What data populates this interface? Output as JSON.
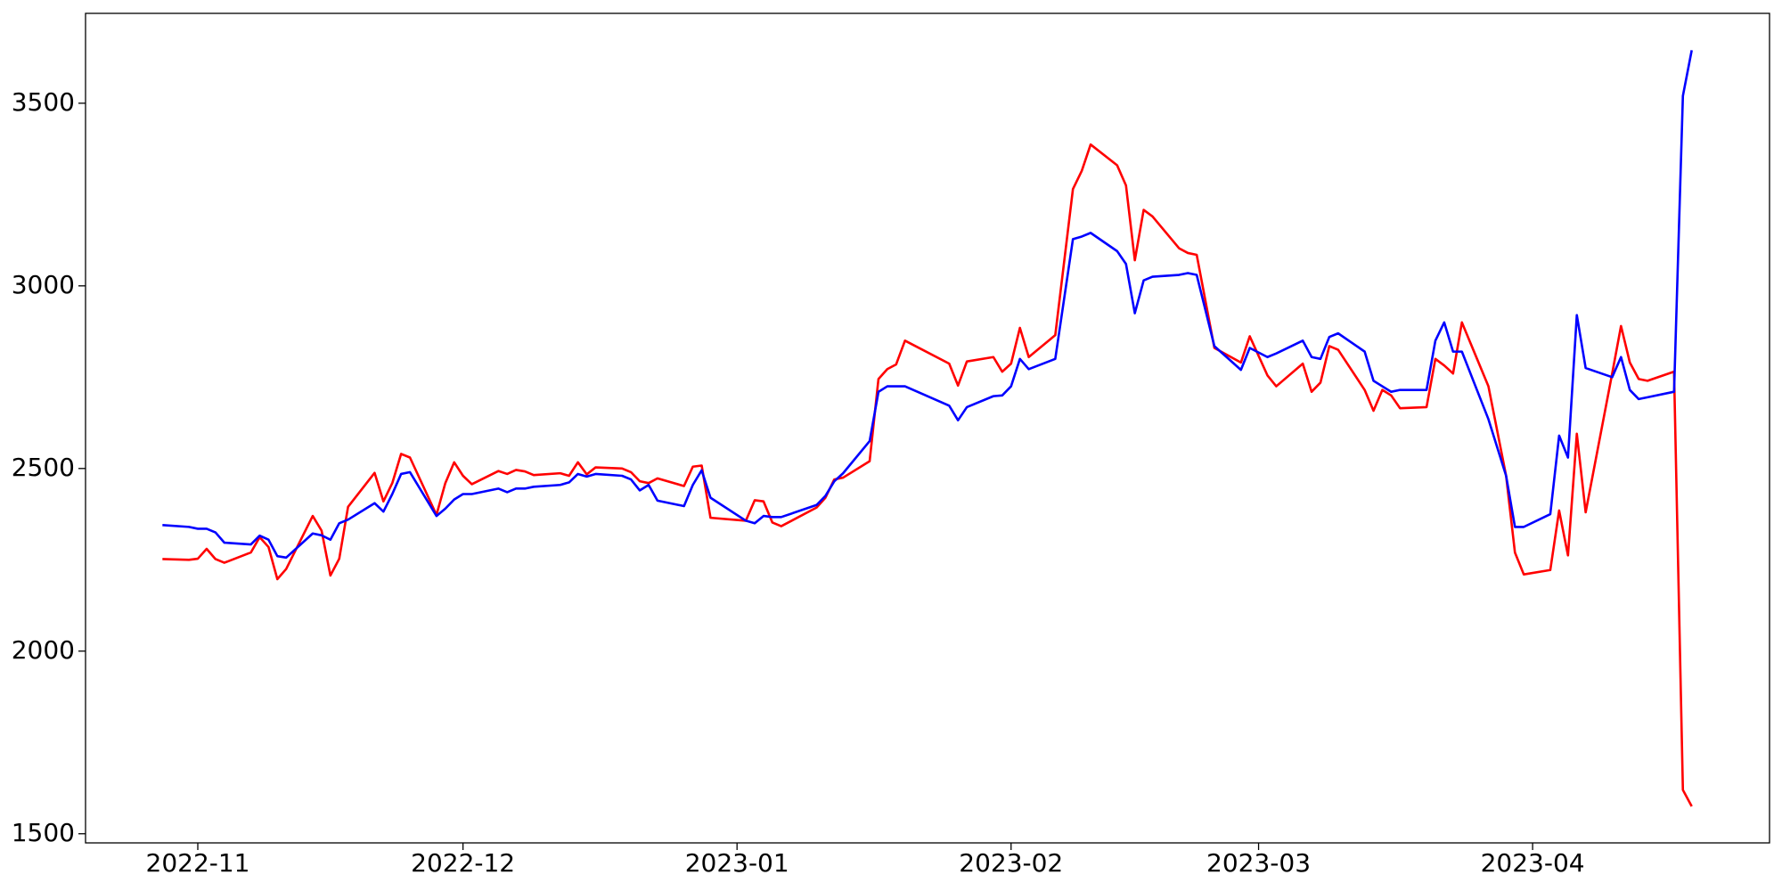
{
  "chart_data": {
    "type": "line",
    "x": [
      19293,
      19296,
      19297,
      19298,
      19299,
      19300,
      19303,
      19304,
      19305,
      19306,
      19307,
      19310,
      19311,
      19312,
      19313,
      19314,
      19317,
      19318,
      19319,
      19320,
      19321,
      19324,
      19325,
      19326,
      19327,
      19328,
      19331,
      19332,
      19333,
      19334,
      19335,
      19338,
      19339,
      19340,
      19341,
      19342,
      19345,
      19346,
      19347,
      19348,
      19349,
      19352,
      19353,
      19354,
      19355,
      19359,
      19360,
      19361,
      19362,
      19363,
      19367,
      19368,
      19369,
      19370,
      19373,
      19374,
      19375,
      19376,
      19377,
      19382,
      19383,
      19384,
      19387,
      19388,
      19389,
      19390,
      19391,
      19394,
      19396,
      19397,
      19398,
      19401,
      19402,
      19403,
      19404,
      19405,
      19408,
      19409,
      19410,
      19412,
      19415,
      19416,
      19418,
      19419,
      19422,
      19423,
      19424,
      19425,
      19426,
      19429,
      19430,
      19431,
      19432,
      19433,
      19436,
      19437,
      19438,
      19439,
      19440,
      19443,
      19445,
      19446,
      19447,
      19450,
      19451,
      19452,
      19453,
      19454,
      19457,
      19458,
      19459,
      19460,
      19461,
      19464,
      19465,
      19466
    ],
    "series": [
      {
        "color": "#ff0000",
        "values": [
          2252,
          2250,
          2253,
          2280,
          2252,
          2242,
          2270,
          2312,
          2285,
          2197,
          2225,
          2370,
          2330,
          2207,
          2253,
          2395,
          2488,
          2410,
          2460,
          2540,
          2530,
          2373,
          2460,
          2517,
          2480,
          2457,
          2493,
          2485,
          2496,
          2492,
          2482,
          2487,
          2480,
          2517,
          2484,
          2503,
          2500,
          2490,
          2465,
          2460,
          2473,
          2452,
          2505,
          2508,
          2365,
          2357,
          2413,
          2410,
          2352,
          2342,
          2393,
          2420,
          2470,
          2475,
          2520,
          2745,
          2772,
          2785,
          2850,
          2787,
          2727,
          2793,
          2805,
          2765,
          2787,
          2885,
          2805,
          2865,
          3265,
          3315,
          3387,
          3330,
          3275,
          3070,
          3208,
          3190,
          3103,
          3090,
          3085,
          2830,
          2790,
          2862,
          2755,
          2725,
          2787,
          2710,
          2735,
          2835,
          2825,
          2715,
          2658,
          2715,
          2700,
          2665,
          2668,
          2800,
          2782,
          2760,
          2900,
          2725,
          2480,
          2270,
          2210,
          2222,
          2385,
          2262,
          2595,
          2380,
          2760,
          2890,
          2790,
          2745,
          2740,
          2765,
          1620,
          1575
        ]
      },
      {
        "color": "#0000ff",
        "values": [
          2345,
          2340,
          2335,
          2335,
          2325,
          2297,
          2292,
          2316,
          2305,
          2260,
          2256,
          2322,
          2317,
          2305,
          2350,
          2360,
          2405,
          2382,
          2430,
          2485,
          2490,
          2370,
          2390,
          2415,
          2430,
          2430,
          2445,
          2435,
          2445,
          2445,
          2450,
          2455,
          2462,
          2485,
          2478,
          2485,
          2480,
          2470,
          2440,
          2455,
          2412,
          2397,
          2455,
          2495,
          2420,
          2357,
          2350,
          2370,
          2367,
          2367,
          2400,
          2425,
          2465,
          2487,
          2575,
          2710,
          2725,
          2725,
          2725,
          2672,
          2632,
          2668,
          2698,
          2700,
          2725,
          2800,
          2772,
          2800,
          3128,
          3135,
          3145,
          3095,
          3060,
          2925,
          3015,
          3025,
          3030,
          3035,
          3030,
          2835,
          2770,
          2830,
          2805,
          2815,
          2850,
          2805,
          2800,
          2860,
          2870,
          2820,
          2740,
          2725,
          2710,
          2715,
          2715,
          2850,
          2900,
          2820,
          2820,
          2635,
          2480,
          2340,
          2340,
          2375,
          2590,
          2530,
          2920,
          2775,
          2750,
          2805,
          2715,
          2690,
          2695,
          2710,
          3520,
          3645
        ]
      }
    ],
    "xlim": [
      19284.3,
      19474.8
    ],
    "xticks": [
      {
        "value": 19297,
        "label": "2022-11"
      },
      {
        "value": 19327,
        "label": "2022-12"
      },
      {
        "value": 19358,
        "label": "2023-01"
      },
      {
        "value": 19389,
        "label": "2023-02"
      },
      {
        "value": 19417,
        "label": "2023-03"
      },
      {
        "value": 19448,
        "label": "2023-04"
      }
    ],
    "ylim": [
      1475,
      3746
    ],
    "yticks": [
      1500,
      2000,
      2500,
      3000,
      3500
    ]
  }
}
